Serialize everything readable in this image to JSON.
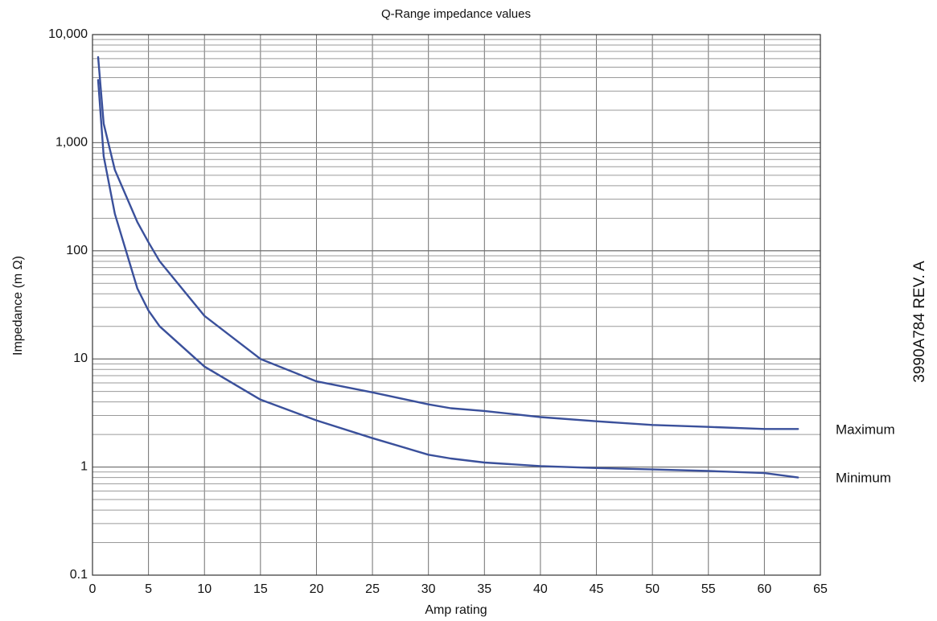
{
  "chart_data": {
    "type": "line",
    "title": "Q-Range impedance values",
    "xlabel": "Amp rating",
    "ylabel": "Impedance (m  Ω)",
    "xlim": [
      0,
      65
    ],
    "ylim": [
      0.1,
      10000
    ],
    "y_scale": "log",
    "grid": true,
    "x_ticks": [
      0,
      5,
      10,
      15,
      20,
      25,
      30,
      35,
      40,
      45,
      50,
      55,
      60,
      65
    ],
    "x_tick_labels": [
      "0",
      "5",
      "10",
      "15",
      "20",
      "25",
      "30",
      "35",
      "40",
      "45",
      "50",
      "55",
      "60",
      "65"
    ],
    "y_ticks": [
      0.1,
      1,
      10,
      100,
      1000,
      10000
    ],
    "y_tick_labels": [
      "0.1",
      "1",
      "10",
      "100",
      "1,000",
      "10,000"
    ],
    "legend_position": "right",
    "line_color": "#3a509b",
    "series": [
      {
        "name": "Maximum",
        "x": [
          0.5,
          1,
          2,
          4,
          5,
          6,
          10,
          15,
          20,
          25,
          30,
          32,
          35,
          40,
          45,
          50,
          55,
          60,
          63
        ],
        "y": [
          6200,
          1500,
          560,
          185,
          120,
          80,
          25,
          10,
          6.2,
          4.9,
          3.8,
          3.5,
          3.3,
          2.9,
          2.65,
          2.45,
          2.35,
          2.25,
          2.25
        ]
      },
      {
        "name": "Minimum",
        "x": [
          0.5,
          1,
          2,
          4,
          5,
          6,
          10,
          15,
          20,
          25,
          30,
          32,
          35,
          40,
          45,
          50,
          55,
          60,
          63
        ],
        "y": [
          3800,
          750,
          220,
          45,
          28,
          20,
          8.5,
          4.2,
          2.7,
          1.85,
          1.3,
          1.2,
          1.1,
          1.02,
          0.98,
          0.95,
          0.92,
          0.88,
          0.8
        ]
      }
    ]
  },
  "watermark": "3990A784 REV. A"
}
